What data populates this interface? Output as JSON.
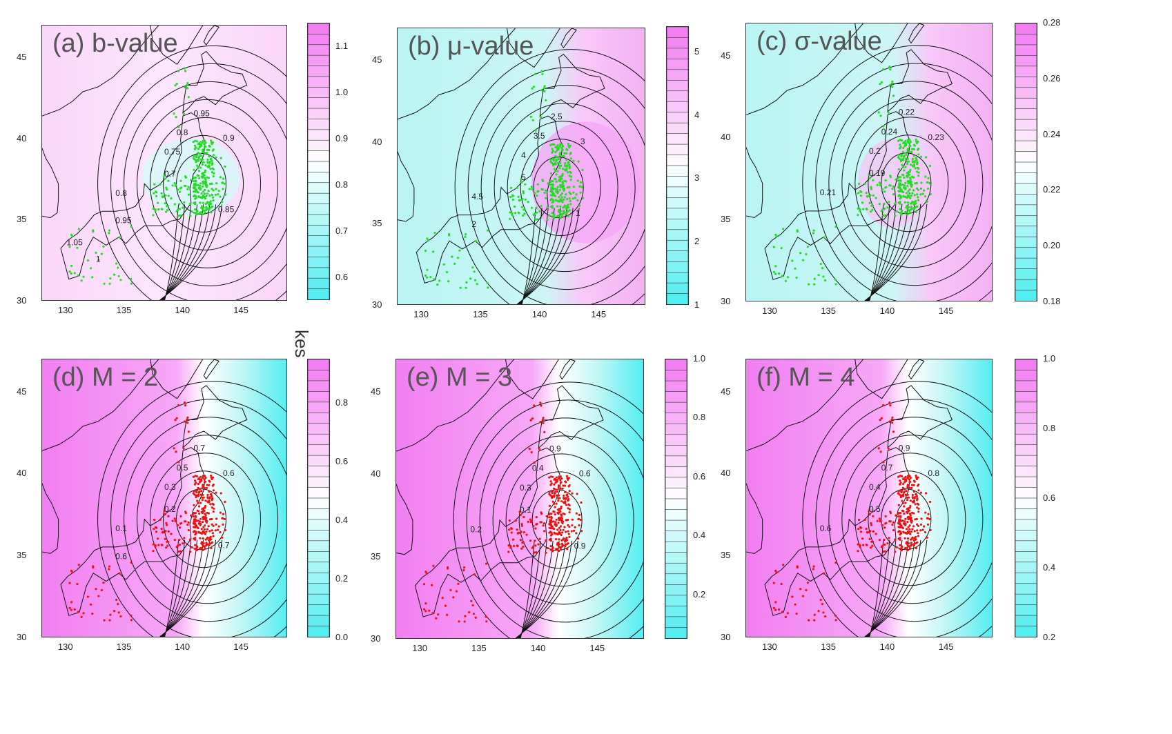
{
  "figure": {
    "stray_label": "kes",
    "panels": [
      {
        "id": "a",
        "title": "(a) b-value",
        "colorbar_ticks": [
          "1.1",
          "1.0",
          "0.9",
          "0.8",
          "0.7",
          "0.6"
        ],
        "colorbar_range": [
          0.55,
          1.15
        ],
        "contour_labels": [
          "0.95",
          "0.9",
          "0.8",
          "0.75",
          "0.7",
          "0.8",
          "0.85",
          "0.95",
          "1.05",
          "1"
        ],
        "point_color": "#22dd22",
        "background": "pinkish",
        "x_ticks": [
          "130",
          "135",
          "140",
          "145"
        ],
        "y_ticks": [
          "45",
          "40",
          "35",
          "30"
        ]
      },
      {
        "id": "b",
        "title": "(b) μ-value",
        "colorbar_ticks": [
          "5",
          "4",
          "3",
          "2",
          "1"
        ],
        "colorbar_range": [
          1,
          5.4
        ],
        "contour_labels": [
          "2.5",
          "3",
          "3.5",
          "4",
          "5",
          "4.5",
          "1",
          "2"
        ],
        "point_color": "#22dd22",
        "background": "cyanish",
        "x_ticks": [
          "130",
          "135",
          "140",
          "145"
        ],
        "y_ticks": [
          "45",
          "40",
          "35",
          "30"
        ]
      },
      {
        "id": "c",
        "title": "(c) σ-value",
        "colorbar_ticks": [
          "0.28",
          "0.26",
          "0.24",
          "0.22",
          "0.20",
          "0.18"
        ],
        "colorbar_range": [
          0.18,
          0.28
        ],
        "contour_labels": [
          "0.22",
          "0.23",
          "0.24",
          "0.2",
          "0.19",
          "0.21"
        ],
        "point_color": "#22dd22",
        "background": "cyanish",
        "x_ticks": [
          "130",
          "135",
          "140",
          "145"
        ],
        "y_ticks": [
          "45",
          "40",
          "35",
          "30"
        ]
      },
      {
        "id": "d",
        "title": "(d) M = 2",
        "colorbar_ticks": [
          "0.8",
          "0.6",
          "0.4",
          "0.2",
          "0.0"
        ],
        "colorbar_range": [
          0,
          0.95
        ],
        "contour_labels": [
          "0.7",
          "0.6",
          "0.5",
          "0.3",
          "0.2",
          "0.1",
          "0.7",
          "0.6"
        ],
        "point_color": "#ee1111",
        "background": "pink-to-cyan",
        "x_ticks": [
          "130",
          "135",
          "140",
          "145"
        ],
        "y_ticks": [
          "45",
          "40",
          "35",
          "30"
        ]
      },
      {
        "id": "e",
        "title": "(e) M = 3",
        "colorbar_ticks": [
          "1.0",
          "0.8",
          "0.6",
          "0.4",
          "0.2"
        ],
        "colorbar_range": [
          0.05,
          1.0
        ],
        "contour_labels": [
          "0.9",
          "0.6",
          "0.4",
          "0.3",
          "0.1",
          "0.2",
          "0.9"
        ],
        "point_color": "#ee1111",
        "background": "pink-to-cyan",
        "x_ticks": [
          "130",
          "135",
          "140",
          "145"
        ],
        "y_ticks": [
          "45",
          "40",
          "35",
          "30"
        ]
      },
      {
        "id": "f",
        "title": "(f) M = 4",
        "colorbar_ticks": [
          "1.0",
          "0.8",
          "0.6",
          "0.4",
          "0.2"
        ],
        "colorbar_range": [
          0.2,
          1.0
        ],
        "contour_labels": [
          "0.9",
          "0.8",
          "0.7",
          "0.4",
          "0.5",
          "0.6"
        ],
        "point_color": "#ee1111",
        "background": "pink-to-cyan",
        "x_ticks": [
          "130",
          "135",
          "140",
          "145"
        ],
        "y_ticks": [
          "45",
          "40",
          "35",
          "30"
        ]
      }
    ]
  },
  "colors": {
    "pink": "#f27ef2",
    "light_pink": "#fbd6fb",
    "white": "#ffffff",
    "light_cyan": "#c9f7f7",
    "cyan": "#55eef0",
    "contour": "#111111"
  }
}
